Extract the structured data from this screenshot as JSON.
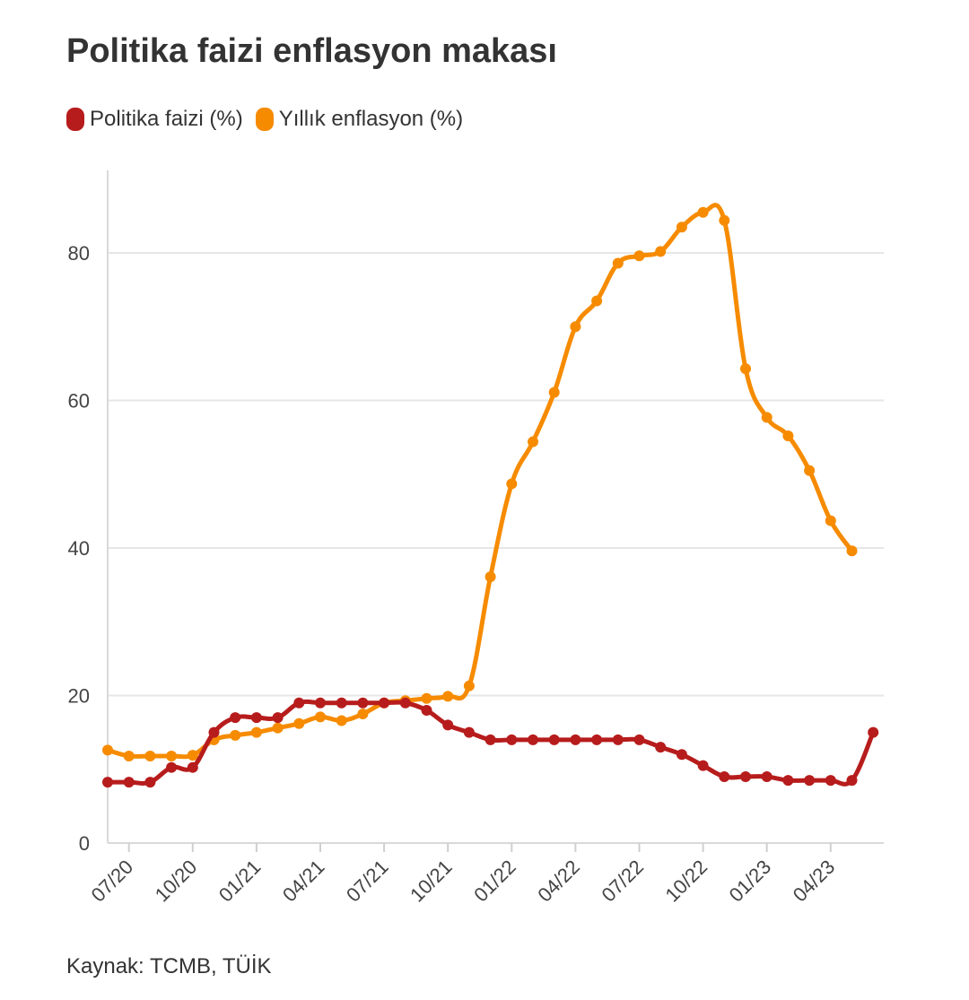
{
  "title": "Politika faizi enflasyon makası",
  "source": "Kaynak: TCMB, TÜİK",
  "colors": {
    "policy_rate": "#b71c1c",
    "inflation": "#f68b00",
    "grid": "#e6e6e6",
    "text": "#333333"
  },
  "chart_data": {
    "type": "line",
    "title": "Politika faizi enflasyon makası",
    "xlabel": "",
    "ylabel": "",
    "ylim": [
      0,
      90
    ],
    "yticks": [
      0,
      20,
      40,
      60,
      80
    ],
    "grid": true,
    "legend_position": "top-left",
    "x": [
      "06/20",
      "07/20",
      "08/20",
      "09/20",
      "10/20",
      "11/20",
      "12/20",
      "01/21",
      "02/21",
      "03/21",
      "04/21",
      "05/21",
      "06/21",
      "07/21",
      "08/21",
      "09/21",
      "10/21",
      "11/21",
      "12/21",
      "01/22",
      "02/22",
      "03/22",
      "04/22",
      "05/22",
      "06/22",
      "07/22",
      "08/22",
      "09/22",
      "10/22",
      "11/22",
      "12/22",
      "01/23",
      "02/23",
      "03/23",
      "04/23",
      "05/23",
      "06/23"
    ],
    "xtick_labels": [
      "07/20",
      "10/20",
      "01/21",
      "04/21",
      "07/21",
      "10/21",
      "01/22",
      "04/22",
      "07/22",
      "10/22",
      "01/23",
      "04/23"
    ],
    "series": [
      {
        "name": "Politika faizi (%)",
        "color": "#b71c1c",
        "values": [
          8.25,
          8.25,
          8.25,
          10.25,
          10.25,
          15,
          17,
          17,
          17,
          19,
          19,
          19,
          19,
          19,
          19,
          18,
          16,
          15,
          14,
          14,
          14,
          14,
          14,
          14,
          14,
          14,
          13,
          12,
          10.5,
          9,
          9,
          9,
          8.5,
          8.5,
          8.5,
          8.5,
          15
        ]
      },
      {
        "name": "Yıllık enflasyon (%)",
        "color": "#f68b00",
        "values": [
          12.6,
          11.8,
          11.8,
          11.8,
          11.9,
          14,
          14.6,
          15,
          15.6,
          16.2,
          17.1,
          16.6,
          17.5,
          19,
          19.3,
          19.6,
          19.9,
          21.3,
          36.1,
          48.7,
          54.4,
          61.1,
          70,
          73.5,
          78.6,
          79.6,
          80.2,
          83.5,
          85.5,
          84.4,
          64.3,
          57.7,
          55.2,
          50.5,
          43.7,
          39.6,
          null
        ]
      }
    ]
  }
}
